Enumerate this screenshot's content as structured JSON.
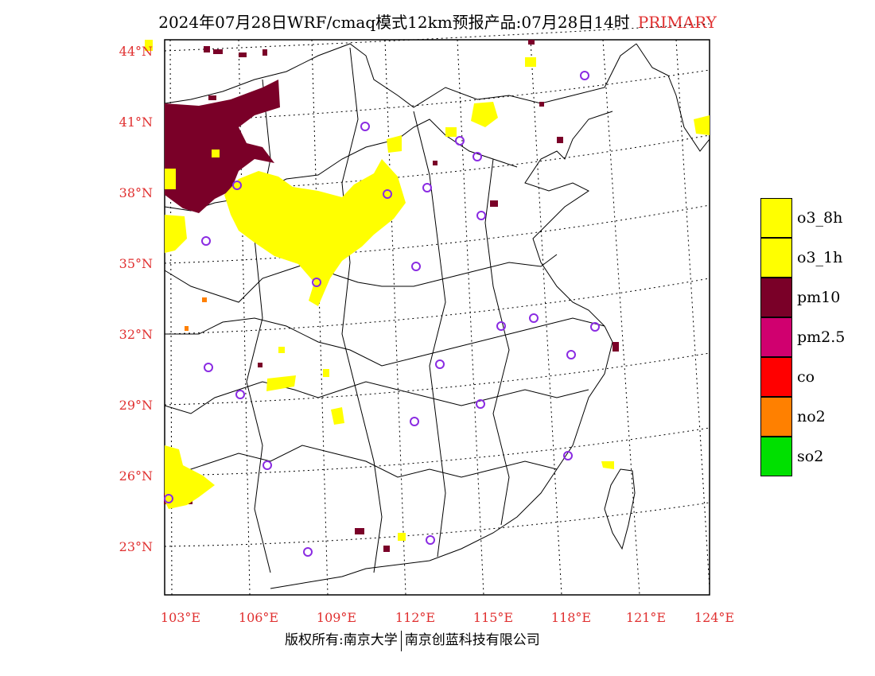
{
  "title": {
    "text": "2024年07月28日WRF/cmaq模式12km预报产品:07月28日14时",
    "tag": "PRIMARY",
    "tag_color": "#e03030"
  },
  "map": {
    "lat_labels": [
      "44°N",
      "41°N",
      "38°N",
      "35°N",
      "32°N",
      "29°N",
      "26°N",
      "23°N"
    ],
    "lon_labels": [
      "103°E",
      "106°E",
      "109°E",
      "112°E",
      "115°E",
      "118°E",
      "121°E",
      "124°E"
    ],
    "label_color": "#e03030",
    "station_marker_color": "#8a2be2"
  },
  "legend": {
    "items": [
      {
        "label": "o3_8h",
        "color": "#ffff00"
      },
      {
        "label": "o3_1h",
        "color": "#ffff00"
      },
      {
        "label": "pm10",
        "color": "#7a0028"
      },
      {
        "label": "pm2.5",
        "color": "#d0006f"
      },
      {
        "label": "co",
        "color": "#ff0000"
      },
      {
        "label": "no2",
        "color": "#ff8000"
      },
      {
        "label": "so2",
        "color": "#00e000"
      }
    ]
  },
  "footer": {
    "left": "版权所有:南京大学",
    "right": "南京创蓝科技有限公司"
  }
}
